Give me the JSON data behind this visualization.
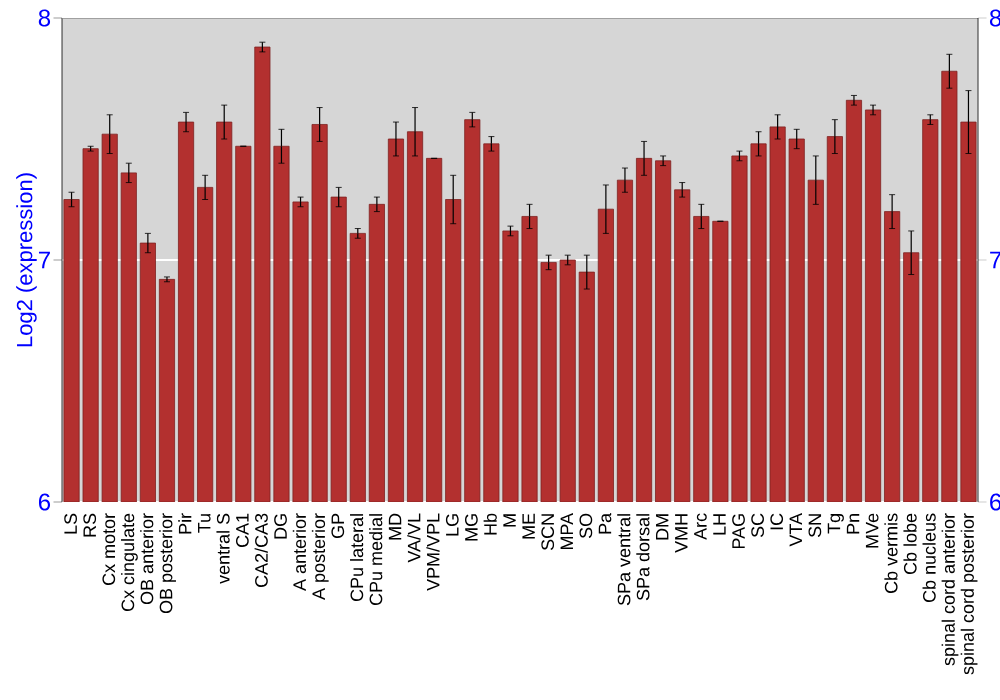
{
  "chart_data": {
    "type": "bar",
    "ylabel": "Log2 (expression)",
    "categories": [
      "LS",
      "RS",
      "Cx motor",
      "Cx cingulate",
      "OB anterior",
      "OB posterior",
      "Pir",
      "Tu",
      "ventral S",
      "CA1",
      "CA2/CA3",
      "DG",
      "A anterior",
      "A posterior",
      "GP",
      "CPu lateral",
      "CPu medial",
      "MD",
      "VA/VL",
      "VPM/VPL",
      "LG",
      "MG",
      "Hb",
      "M",
      "ME",
      "SCN",
      "MPA",
      "SO",
      "Pa",
      "SPa ventral",
      "SPa dorsal",
      "DM",
      "VMH",
      "Arc",
      "LH",
      "PAG",
      "SC",
      "IC",
      "VTA",
      "SN",
      "Tg",
      "Pn",
      "MVe",
      "Cb vermis",
      "Cb lobe",
      "Cb nucleus",
      "spinal cord anterior",
      "spinal cord posterior"
    ],
    "values": [
      7.25,
      7.46,
      7.52,
      7.36,
      7.07,
      6.92,
      7.57,
      7.3,
      7.57,
      7.47,
      7.88,
      7.47,
      7.24,
      7.56,
      7.26,
      7.11,
      7.23,
      7.5,
      7.53,
      7.42,
      7.25,
      7.58,
      7.48,
      7.12,
      7.18,
      6.99,
      7.0,
      6.95,
      7.21,
      7.33,
      7.42,
      7.41,
      7.29,
      7.18,
      7.16,
      7.43,
      7.48,
      7.55,
      7.5,
      7.33,
      7.51,
      7.66,
      7.62,
      7.2,
      7.03,
      7.58,
      7.78,
      7.57
    ],
    "errors": [
      0.03,
      0.01,
      0.08,
      0.04,
      0.04,
      0.01,
      0.04,
      0.05,
      0.07,
      null,
      0.02,
      0.07,
      0.02,
      0.07,
      0.04,
      0.02,
      0.03,
      0.07,
      0.1,
      null,
      0.1,
      0.03,
      0.03,
      0.02,
      0.05,
      0.03,
      0.02,
      0.07,
      0.1,
      0.05,
      0.07,
      0.02,
      0.03,
      0.05,
      null,
      0.02,
      0.05,
      0.05,
      0.04,
      0.1,
      0.07,
      0.02,
      0.02,
      0.07,
      0.09,
      0.02,
      0.07,
      0.13
    ],
    "color": "#b3302f",
    "ylim": [
      6,
      8
    ],
    "yticks": [
      6,
      7,
      8
    ],
    "y2lim": [
      6,
      8
    ],
    "y2ticks": [
      6,
      7,
      8
    ],
    "grid": "y"
  }
}
